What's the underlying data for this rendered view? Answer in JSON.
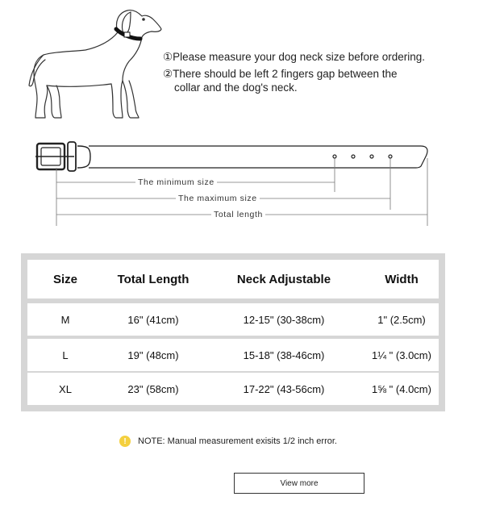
{
  "instructions": {
    "line1": "①Please measure your dog neck size before ordering.",
    "line2": "②There should be left 2 fingers gap between the",
    "line3": "collar and the dog's neck."
  },
  "diagram": {
    "min_label": "The minimum size",
    "max_label": "The maximum size",
    "total_label": "Total length"
  },
  "table": {
    "headers": [
      "Size",
      "Total Length",
      "Neck Adjustable",
      "Width"
    ],
    "rows": [
      [
        "M",
        "16\" (41cm)",
        "12-15\" (30-38cm)",
        "1\" (2.5cm)"
      ],
      [
        "L",
        "19\" (48cm)",
        "15-18\" (38-46cm)",
        "1¼ \" (3.0cm)"
      ],
      [
        "XL",
        "23\" (58cm)",
        "17-22\" (43-56cm)",
        "1⅝ \" (4.0cm)"
      ]
    ]
  },
  "note": {
    "icon": "!",
    "text": "NOTE: Manual measurement exisits 1/2  inch error."
  },
  "button": {
    "view_more": "View more"
  }
}
